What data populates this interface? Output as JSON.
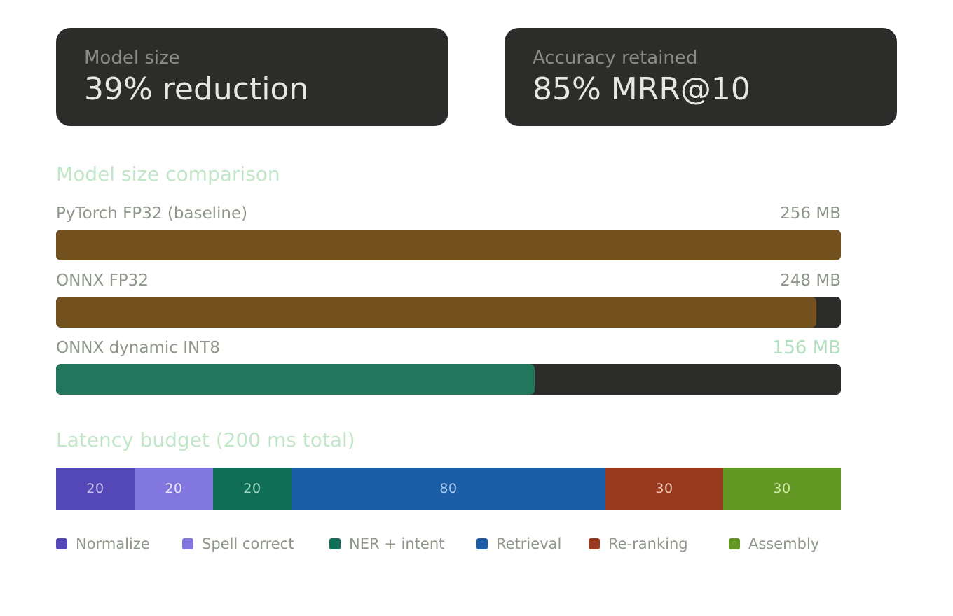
{
  "kpis": [
    {
      "label": "Model size",
      "value": "39% reduction"
    },
    {
      "label": "Accuracy retained",
      "value": "85% MRR@10"
    }
  ],
  "chart_data": [
    {
      "type": "bar",
      "orientation": "horizontal",
      "title": "Model size comparison",
      "unit": "MB",
      "xlim": [
        0,
        256
      ],
      "categories": [
        "PyTorch FP32 (baseline)",
        "ONNX FP32",
        "ONNX dynamic INT8"
      ],
      "values": [
        256,
        248,
        156
      ],
      "value_labels": [
        "256 MB",
        "248 MB",
        "156 MB"
      ],
      "colors": [
        "#73511f",
        "#73511f",
        "#22765c"
      ],
      "track_color": "#2c2c2a"
    },
    {
      "type": "bar",
      "stacked": true,
      "orientation": "horizontal",
      "title": "Latency budget (200 ms total)",
      "total": 200,
      "series": [
        {
          "name": "Normalize",
          "value": 20,
          "color": "#5548b8",
          "text_color": "#c6c3ef"
        },
        {
          "name": "Spell correct",
          "value": 20,
          "color": "#8176de",
          "text_color": "#ebe9ff"
        },
        {
          "name": "NER + intent",
          "value": 20,
          "color": "#106e56",
          "text_color": "#9fdcc6"
        },
        {
          "name": "Retrieval",
          "value": 80,
          "color": "#1b5ea7",
          "text_color": "#a8c9ef"
        },
        {
          "name": "Re-ranking",
          "value": 30,
          "color": "#993a1e",
          "text_color": "#f0c6b6"
        },
        {
          "name": "Assembly",
          "value": 30,
          "color": "#649824",
          "text_color": "#d2eca8"
        }
      ],
      "legend": "bottom"
    }
  ]
}
